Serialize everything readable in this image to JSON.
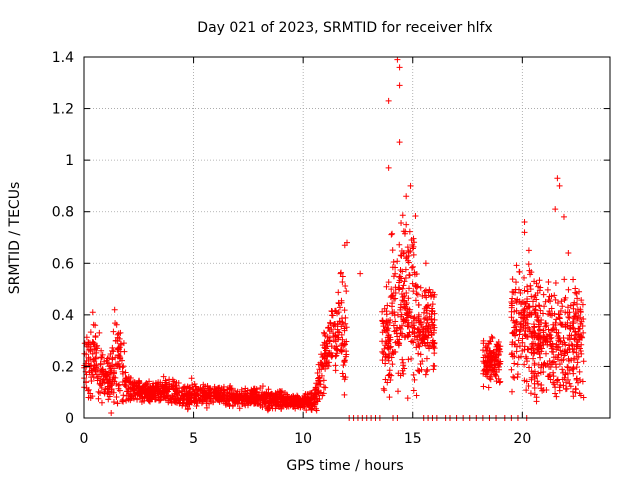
{
  "chart_data": {
    "type": "scatter",
    "title": "Day 021 of 2023, SRMTID for receiver hlfx",
    "xlabel": "GPS time / hours",
    "ylabel": "SRMTID / TECUs",
    "xlim": [
      0,
      24
    ],
    "ylim": [
      0,
      1.4
    ],
    "x_ticks": [
      0,
      5,
      10,
      15,
      20
    ],
    "x_tick_labels": [
      "0",
      "5",
      "10",
      "15",
      "20"
    ],
    "y_ticks": [
      0,
      0.2,
      0.4,
      0.6,
      0.8,
      1.0,
      1.2,
      1.4
    ],
    "y_tick_labels": [
      "0",
      "0.2",
      "0.4",
      "0.6",
      "0.8",
      "1",
      "1.2",
      "1.4"
    ],
    "grid": true,
    "marker": "+",
    "color": "#ff0000",
    "envelope": {
      "description": "approximate SRMTID envelope of scattered '+' markers (hours, TECU)",
      "x": [
        0.0,
        0.25,
        0.5,
        0.75,
        1.0,
        1.4,
        1.6,
        2.0,
        3.0,
        4.0,
        5.0,
        6.0,
        7.0,
        8.0,
        9.0,
        9.5,
        10.0,
        10.5,
        10.8,
        11.2,
        11.6,
        12.0
      ],
      "center": [
        0.2,
        0.22,
        0.25,
        0.18,
        0.14,
        0.2,
        0.25,
        0.12,
        0.1,
        0.1,
        0.09,
        0.09,
        0.08,
        0.08,
        0.07,
        0.06,
        0.06,
        0.07,
        0.15,
        0.3,
        0.35,
        0.3
      ],
      "spread": [
        0.1,
        0.12,
        0.12,
        0.08,
        0.06,
        0.12,
        0.15,
        0.04,
        0.03,
        0.04,
        0.04,
        0.03,
        0.03,
        0.03,
        0.03,
        0.02,
        0.02,
        0.03,
        0.08,
        0.1,
        0.15,
        0.2
      ]
    },
    "clusters": [
      {
        "x_range": [
          13.6,
          14.0
        ],
        "center": 0.3,
        "spread": 0.2
      },
      {
        "x_range": [
          14.0,
          15.2
        ],
        "center": 0.45,
        "spread": 0.3
      },
      {
        "x_range": [
          15.2,
          16.0
        ],
        "center": 0.35,
        "spread": 0.15
      },
      {
        "x_range": [
          18.2,
          19.0
        ],
        "center": 0.22,
        "spread": 0.08
      },
      {
        "x_range": [
          19.5,
          20.5
        ],
        "center": 0.35,
        "spread": 0.2
      },
      {
        "x_range": [
          20.5,
          22.8
        ],
        "center": 0.3,
        "spread": 0.2
      }
    ],
    "notable_points": [
      {
        "x": 14.3,
        "y": 1.39
      },
      {
        "x": 14.4,
        "y": 1.36
      },
      {
        "x": 13.9,
        "y": 1.23
      },
      {
        "x": 14.4,
        "y": 1.07
      },
      {
        "x": 14.4,
        "y": 1.29
      },
      {
        "x": 13.9,
        "y": 0.97
      },
      {
        "x": 14.9,
        "y": 0.9
      },
      {
        "x": 14.7,
        "y": 0.86
      },
      {
        "x": 21.6,
        "y": 0.93
      },
      {
        "x": 21.7,
        "y": 0.9
      },
      {
        "x": 20.1,
        "y": 0.76
      },
      {
        "x": 20.1,
        "y": 0.72
      },
      {
        "x": 20.3,
        "y": 0.65
      },
      {
        "x": 21.5,
        "y": 0.81
      },
      {
        "x": 21.9,
        "y": 0.78
      },
      {
        "x": 22.1,
        "y": 0.64
      },
      {
        "x": 11.9,
        "y": 0.67
      },
      {
        "x": 12.0,
        "y": 0.68
      },
      {
        "x": 12.6,
        "y": 0.56
      },
      {
        "x": 15.6,
        "y": 0.6
      },
      {
        "x": 14.7,
        "y": 0.75
      },
      {
        "x": 1.4,
        "y": 0.42
      },
      {
        "x": 0.4,
        "y": 0.41
      },
      {
        "x": 0.7,
        "y": 0.33
      }
    ],
    "zero_points_x": [
      12.1,
      12.3,
      12.5,
      12.7,
      12.9,
      13.1,
      13.3,
      13.5,
      14.1,
      14.3,
      15.5,
      15.7,
      15.9,
      16.1,
      16.5,
      16.7,
      17.0,
      17.3,
      17.6,
      17.9,
      18.2,
      18.5,
      18.8,
      19.2,
      19.5,
      19.8,
      20.2
    ]
  }
}
